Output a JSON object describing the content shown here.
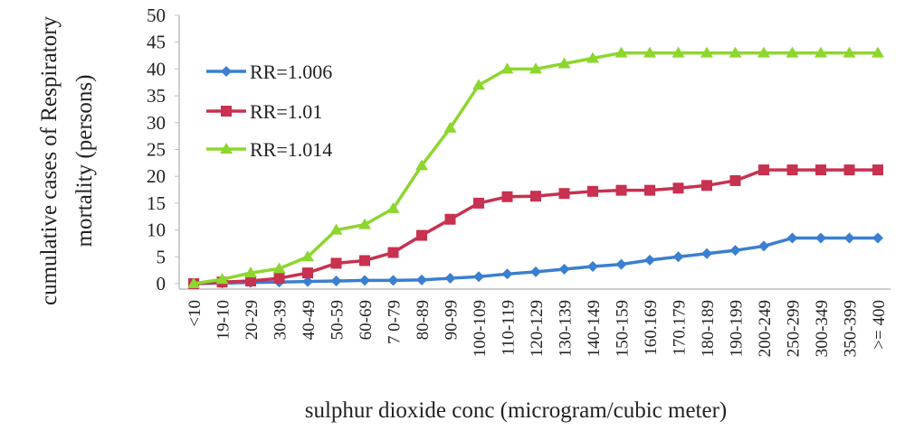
{
  "chart_data": {
    "type": "line",
    "title": "",
    "xlabel": "sulphur dioxide conc (microgram/cubic meter)",
    "ylabel_lines": [
      "cumulative cases of Respiratory",
      "mortality (persons)"
    ],
    "ylim": [
      0,
      50
    ],
    "yticks": [
      0,
      5,
      10,
      15,
      20,
      25,
      30,
      35,
      40,
      45,
      50
    ],
    "grid": false,
    "legend_position": "top-left",
    "categories": [
      "<10",
      "19-10",
      "20-29",
      "30-39",
      "40-49",
      "50-59",
      "60-69",
      "7 0-79",
      "80-89",
      "90-99",
      "100-109",
      "110-119",
      "120-129",
      "130-139",
      "140-149",
      "150-159",
      "160.169",
      "170.179",
      "180-189",
      "190-199",
      "200-249",
      "250-299",
      "300-349",
      "350-399",
      ">= 400"
    ],
    "series": [
      {
        "name": "RR=1.006",
        "color": "#3a7fd0",
        "marker": "diamond",
        "values": [
          0,
          0.1,
          0.2,
          0.3,
          0.4,
          0.5,
          0.6,
          0.6,
          0.7,
          1.0,
          1.3,
          1.8,
          2.2,
          2.7,
          3.2,
          3.6,
          4.4,
          5.0,
          5.6,
          6.2,
          7.0,
          8.5,
          8.5,
          8.5,
          8.5
        ]
      },
      {
        "name": "RR=1.01",
        "color": "#c8314f",
        "marker": "square",
        "values": [
          0,
          0.3,
          0.5,
          1.0,
          2.0,
          3.8,
          4.3,
          5.8,
          9.0,
          12.0,
          15.0,
          16.2,
          16.3,
          16.8,
          17.2,
          17.4,
          17.4,
          17.8,
          18.3,
          19.2,
          21.2,
          21.2,
          21.2,
          21.2,
          21.2
        ]
      },
      {
        "name": "RR=1.014",
        "color": "#8dd62e",
        "marker": "triangle",
        "values": [
          0,
          0.8,
          2.0,
          2.8,
          5.0,
          10.0,
          11.0,
          14.0,
          22.0,
          29.0,
          37.0,
          40.0,
          40.0,
          41.0,
          42.0,
          43.0,
          43.0,
          43.0,
          43.0,
          43.0,
          43.0,
          43.0,
          43.0,
          43.0,
          43.0
        ]
      }
    ]
  }
}
